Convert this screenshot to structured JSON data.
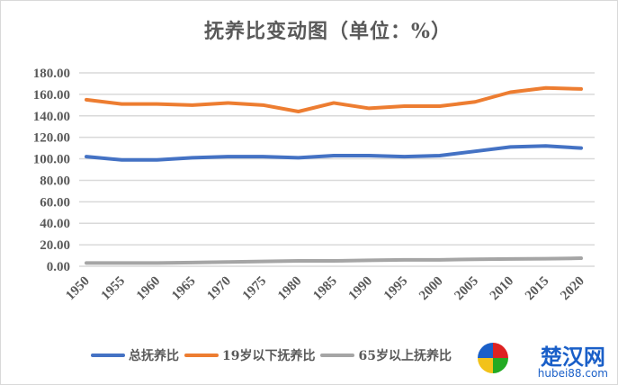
{
  "chart_data": {
    "type": "line",
    "title": "抚养比变动图（单位：%）",
    "categories": [
      "1950",
      "1955",
      "1960",
      "1965",
      "1970",
      "1975",
      "1980",
      "1985",
      "1990",
      "1995",
      "2000",
      "2005",
      "2010",
      "2015",
      "2020"
    ],
    "series": [
      {
        "name": "总抚养比",
        "color": "#4472c4",
        "values": [
          102,
          99,
          99,
          101,
          102,
          102,
          101,
          103,
          103,
          102,
          103,
          107,
          111,
          112,
          110
        ]
      },
      {
        "name": "19岁以下抚养比",
        "color": "#ed7d31",
        "values": [
          155,
          151,
          151,
          150,
          152,
          150,
          144,
          152,
          147,
          149,
          149,
          153,
          162,
          166,
          165
        ]
      },
      {
        "name": "65岁以上抚养比",
        "color": "#a5a5a5",
        "values": [
          3,
          3,
          3,
          3.5,
          4,
          4.5,
          5,
          5,
          5.5,
          6,
          6,
          6.5,
          6.8,
          7,
          7.5
        ]
      }
    ],
    "yticks": [
      "0.00",
      "20.00",
      "40.00",
      "60.00",
      "80.00",
      "100.00",
      "120.00",
      "140.00",
      "160.00",
      "180.00"
    ],
    "ylim": [
      0,
      180
    ],
    "grid": true,
    "legend": "bottom"
  },
  "watermark": {
    "cn": "楚汉网",
    "en": "hubei88.com"
  }
}
